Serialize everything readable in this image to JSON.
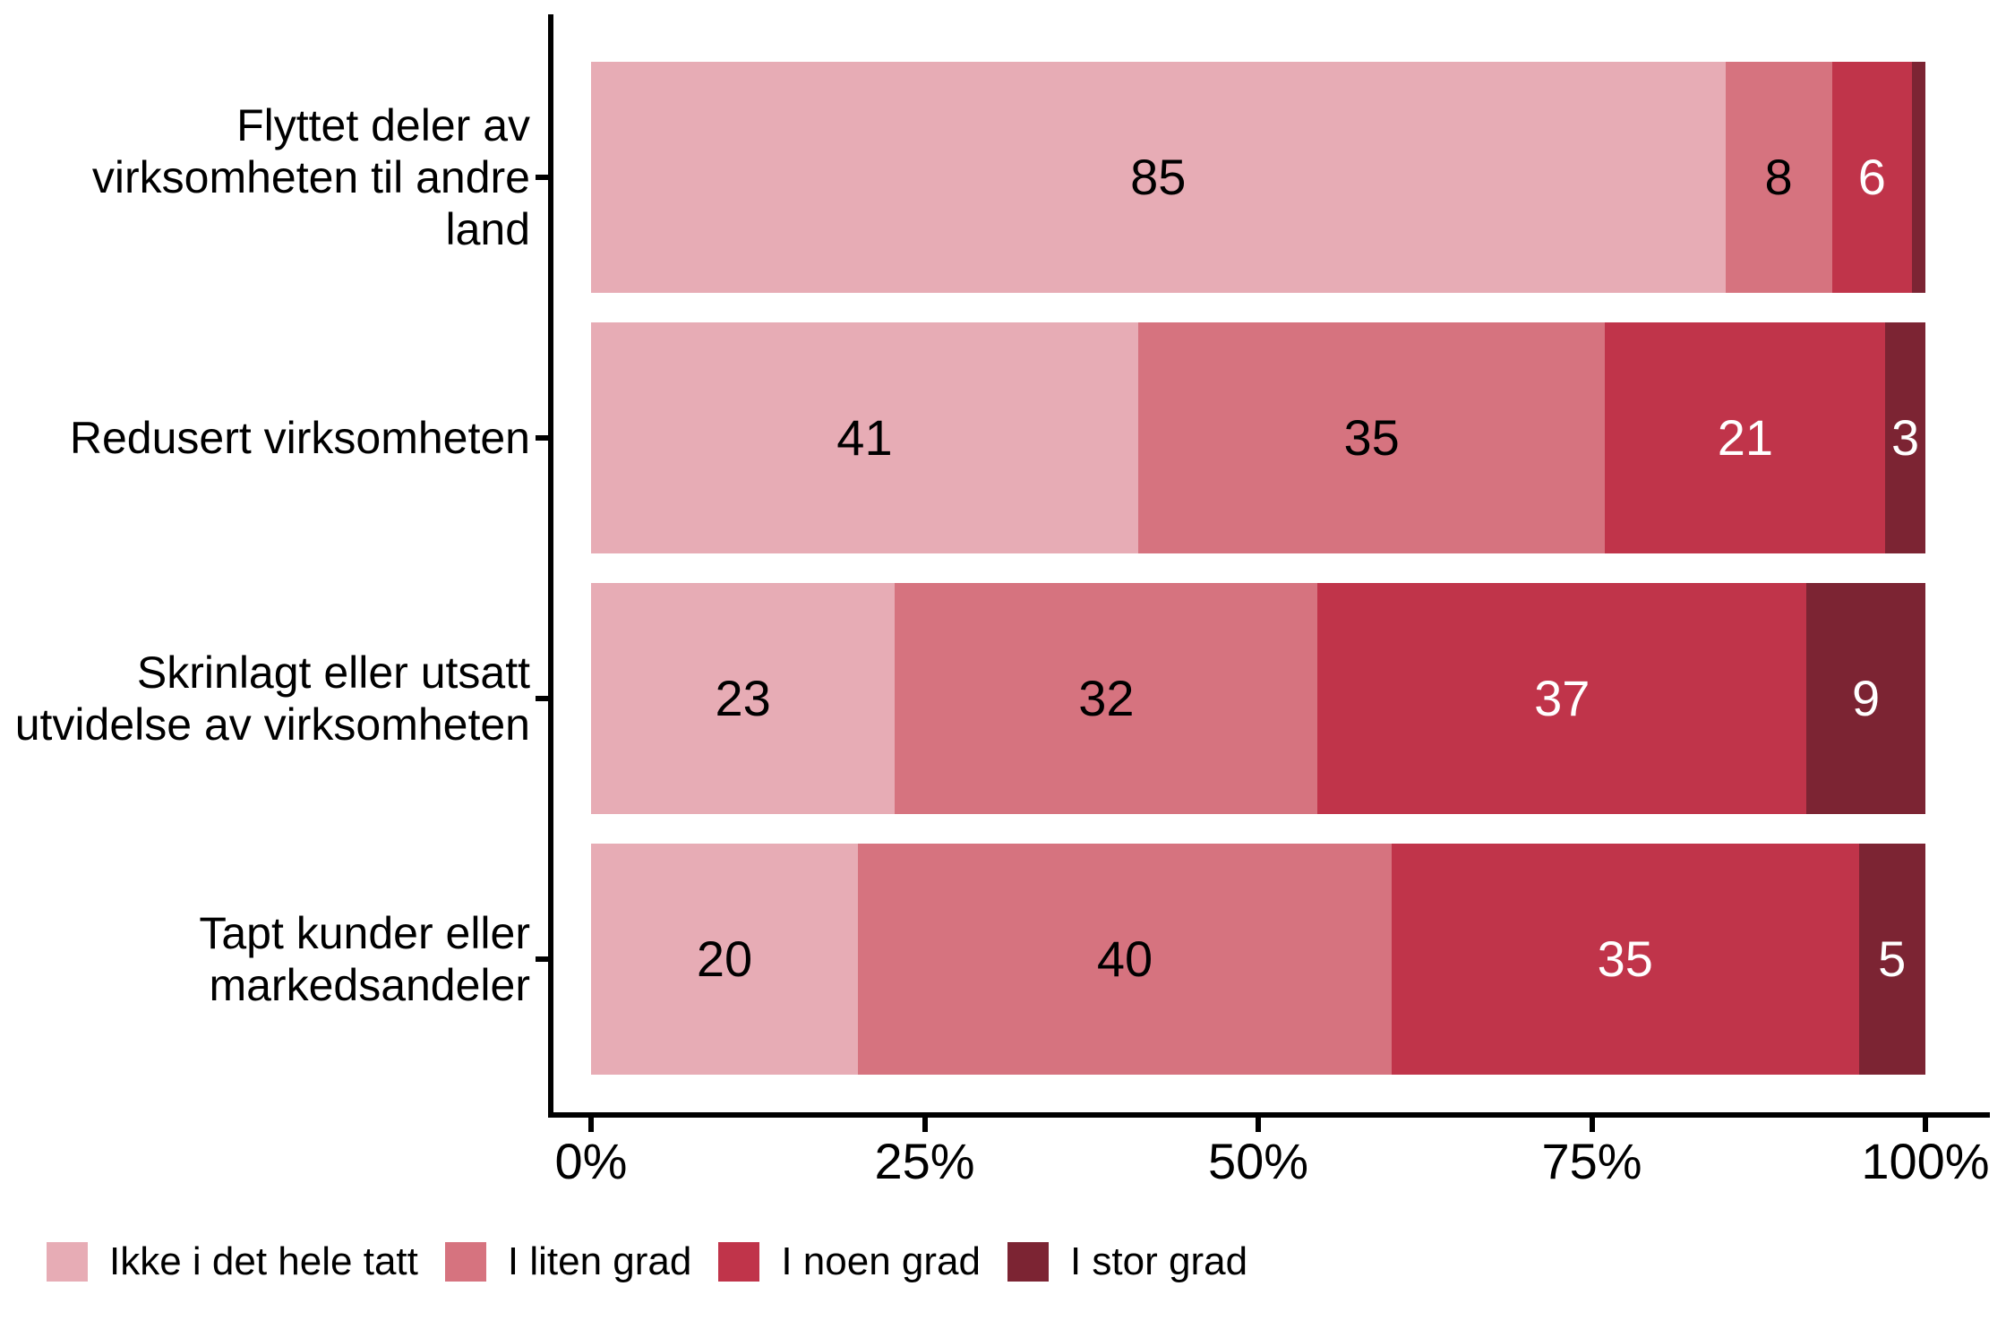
{
  "chart_data": {
    "type": "bar",
    "orientation": "horizontal",
    "stacked": true,
    "title": "",
    "xlabel": "",
    "ylabel": "",
    "xlim": [
      0,
      100
    ],
    "grid": false,
    "legend_position": "bottom",
    "categories": [
      "Flyttet deler av\nvirksomheten til andre\nland",
      "Redusert virksomheten",
      "Skrinlagt eller utsatt\nutvidelse av virksomheten",
      "Tapt kunder eller\nmarkedsandeler"
    ],
    "series": [
      {
        "name": "Ikke i det hele tatt",
        "color": "#e7acb5",
        "label_color": "#000000",
        "values": [
          85,
          41,
          23,
          20
        ]
      },
      {
        "name": "I liten grad",
        "color": "#d6737f",
        "label_color": "#000000",
        "values": [
          8,
          35,
          32,
          40
        ]
      },
      {
        "name": "I noen grad",
        "color": "#c0344a",
        "label_color": "#ffffff",
        "values": [
          6,
          21,
          37,
          35
        ]
      },
      {
        "name": "I stor grad",
        "color": "#7c2433",
        "label_color": "#ffffff",
        "values": [
          1,
          3,
          9,
          5
        ]
      }
    ],
    "value_labels": [
      [
        "85",
        "8",
        "6",
        ""
      ],
      [
        "41",
        "35",
        "21",
        "3"
      ],
      [
        "23",
        "32",
        "37",
        "9"
      ],
      [
        "20",
        "40",
        "35",
        "5"
      ]
    ],
    "x_ticks": [
      {
        "value": 0,
        "label": "0%"
      },
      {
        "value": 25,
        "label": "25%"
      },
      {
        "value": 50,
        "label": "50%"
      },
      {
        "value": 75,
        "label": "75%"
      },
      {
        "value": 100,
        "label": "100%"
      }
    ],
    "axis_color": "#000000",
    "background_color": "#ffffff"
  }
}
